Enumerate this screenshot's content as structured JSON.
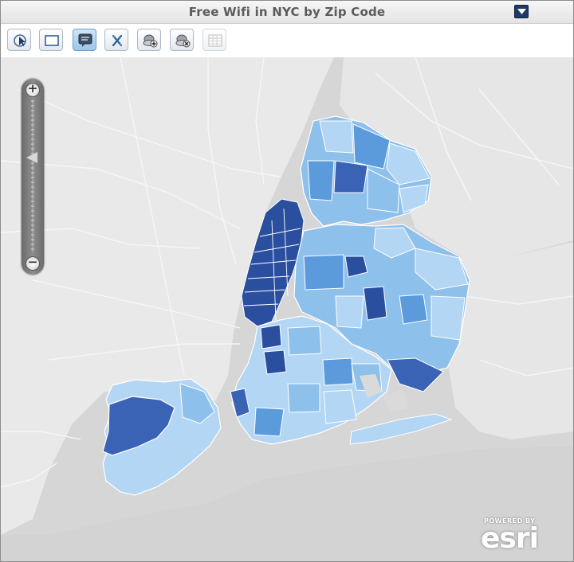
{
  "window": {
    "title": "Free Wifi in NYC by Zip Code"
  },
  "toolbar": {
    "tools": [
      {
        "name": "select-tool",
        "icon": "cursor-icon",
        "state": "normal"
      },
      {
        "name": "full-extent-tool",
        "icon": "extent-icon",
        "state": "normal"
      },
      {
        "name": "popup-tool",
        "icon": "popup-icon",
        "state": "active"
      },
      {
        "name": "clear-tool",
        "icon": "clear-icon",
        "state": "normal"
      },
      {
        "name": "add-layer-tool",
        "icon": "layer-add-icon",
        "state": "normal"
      },
      {
        "name": "remove-layer-tool",
        "icon": "layer-remove-icon",
        "state": "normal"
      },
      {
        "name": "attribute-table-tool",
        "icon": "table-icon",
        "state": "disabled"
      }
    ]
  },
  "map": {
    "basemap": "light-gray-canvas",
    "zoom": {
      "plus": "+",
      "minus": "−",
      "level_fraction": 0.62
    },
    "choropleth_colors": {
      "class1": "#b3d6f5",
      "class2": "#8ec0ec",
      "class3": "#5b9bdc",
      "class4": "#3a63b5",
      "class5": "#2a4f9e"
    },
    "attribution": {
      "powered_by": "POWERED BY",
      "logo": "esri"
    }
  }
}
